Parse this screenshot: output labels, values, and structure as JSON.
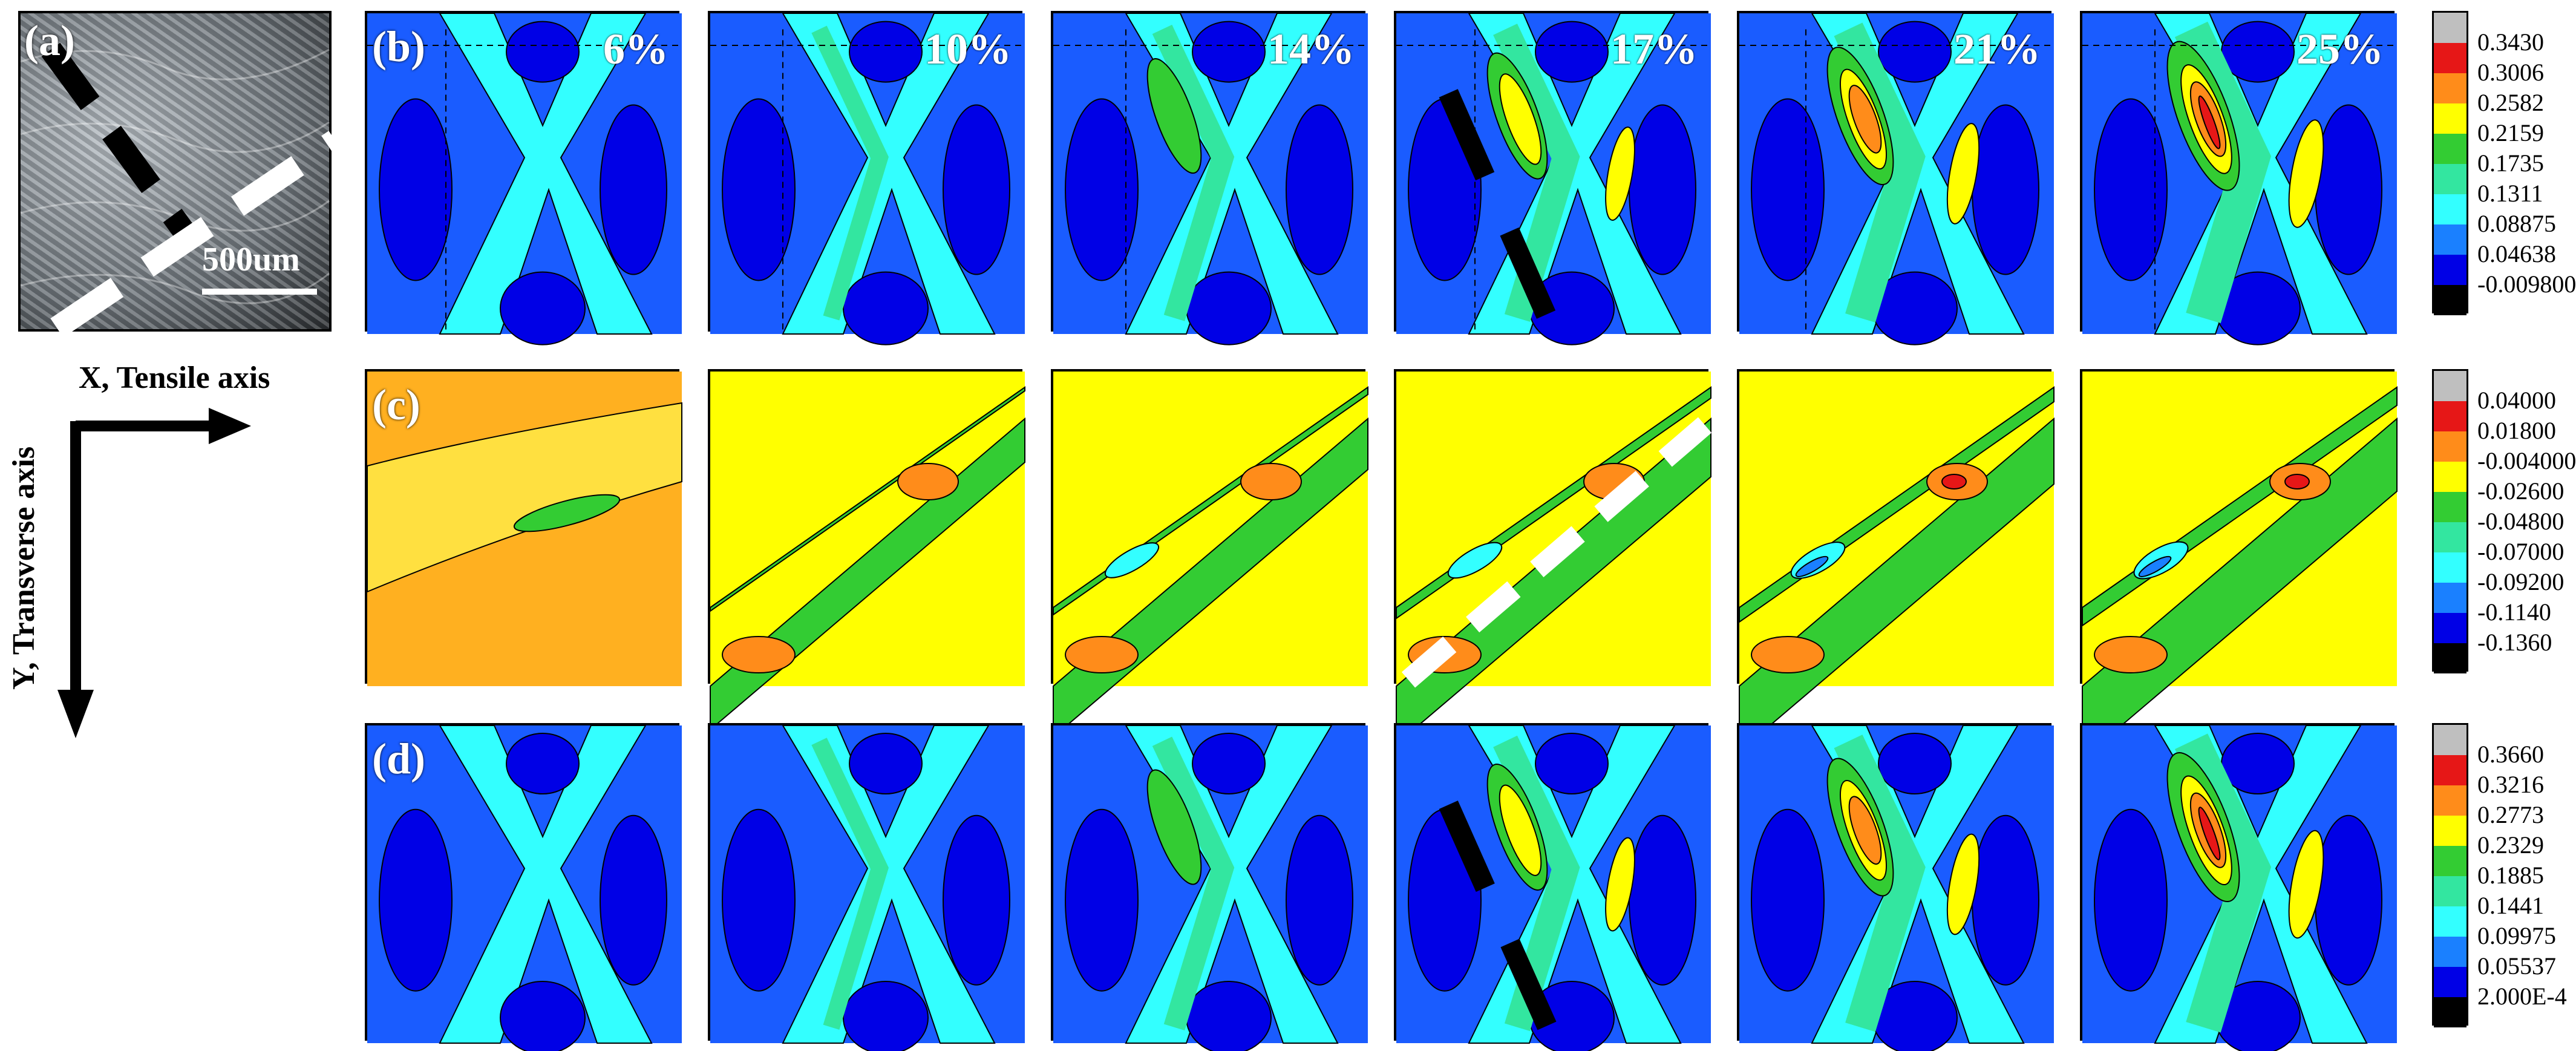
{
  "panel_labels": {
    "a": "(a)",
    "b": "(b)",
    "c": "(c)",
    "d": "(d)"
  },
  "scale_bar": "500um",
  "strain_levels": [
    "6%",
    "10%",
    "14%",
    "17%",
    "21%",
    "25%"
  ],
  "axes": {
    "x_label": "X, Tensile axis",
    "y_label": "Y, Transverse axis"
  },
  "colorbars": [
    {
      "id": "b",
      "ticks": [
        "0.3430",
        "0.3006",
        "0.2582",
        "0.2159",
        "0.1735",
        "0.1311",
        "0.08875",
        "0.04638",
        "-0.009800"
      ],
      "colors": [
        "#bfbfbf",
        "#e61717",
        "#ff8c1a",
        "#ffff00",
        "#33cc33",
        "#33e6a0",
        "#33ffff",
        "#1a80ff",
        "#0000e6",
        "#000000"
      ]
    },
    {
      "id": "c",
      "ticks": [
        "0.04000",
        "0.01800",
        "-0.004000",
        "-0.02600",
        "-0.04800",
        "-0.07000",
        "-0.09200",
        "-0.1140",
        "-0.1360"
      ],
      "colors": [
        "#bfbfbf",
        "#e61717",
        "#ff8c1a",
        "#ffff00",
        "#33cc33",
        "#33e6a0",
        "#33ffff",
        "#1a80ff",
        "#0000e6",
        "#000000"
      ]
    },
    {
      "id": "d",
      "ticks": [
        "0.3660",
        "0.3216",
        "0.2773",
        "0.2329",
        "0.1885",
        "0.1441",
        "0.09975",
        "0.05537",
        "2.000E-4"
      ],
      "colors": [
        "#bfbfbf",
        "#e61717",
        "#ff8c1a",
        "#ffff00",
        "#33cc33",
        "#33e6a0",
        "#33ffff",
        "#1a80ff",
        "#0000e6",
        "#000000"
      ]
    }
  ]
}
